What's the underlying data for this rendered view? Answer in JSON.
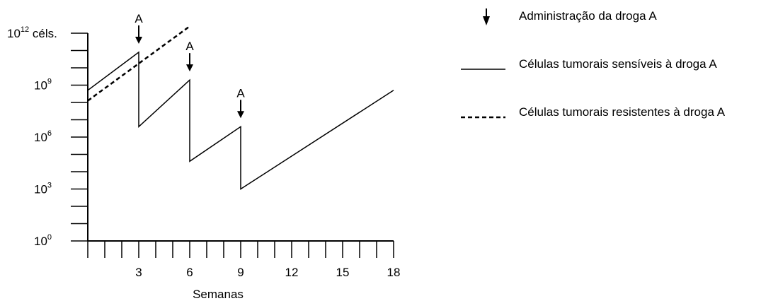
{
  "chart_data": {
    "type": "line",
    "xlabel": "Semanas",
    "xlim": [
      0,
      18
    ],
    "x_ticks": [
      3,
      6,
      9,
      12,
      15,
      18
    ],
    "x_minor_step": 1,
    "y_scale": "log",
    "ylim_log10": [
      0,
      12
    ],
    "y_ticks": [
      {
        "exp": 0,
        "label": "10",
        "sup": "0",
        "suffix": ""
      },
      {
        "exp": 3,
        "label": "10",
        "sup": "3",
        "suffix": ""
      },
      {
        "exp": 6,
        "label": "10",
        "sup": "6",
        "suffix": ""
      },
      {
        "exp": 9,
        "label": "10",
        "sup": "9",
        "suffix": ""
      },
      {
        "exp": 12,
        "label": "10",
        "sup": "12",
        "suffix": " céls."
      }
    ],
    "y_minor_step_log10": 1,
    "series": [
      {
        "name": "Células tumorais sensíveis à droga A",
        "style": "solid",
        "points": [
          [
            0,
            8.7
          ],
          [
            3,
            10.9
          ],
          [
            3,
            6.6
          ],
          [
            6,
            9.3
          ],
          [
            6,
            4.6
          ],
          [
            9,
            6.6
          ],
          [
            9,
            3.0
          ],
          [
            18,
            8.7
          ]
        ]
      },
      {
        "name": "Células tumorais resistentes à droga A",
        "style": "dashed",
        "points": [
          [
            0,
            8.1
          ],
          [
            6,
            12.4
          ]
        ]
      }
    ],
    "annotations": [
      {
        "label": "A",
        "x": 3
      },
      {
        "label": "A",
        "x": 6
      },
      {
        "label": "A",
        "x": 9
      }
    ],
    "legend": {
      "position": "right",
      "entries": [
        {
          "symbol": "arrow",
          "label": "Administração da droga A"
        },
        {
          "symbol": "solid",
          "label": "Células tumorais sensíveis à droga A"
        },
        {
          "symbol": "dashed",
          "label": "Células tumorais resistentes à droga A"
        }
      ]
    }
  }
}
